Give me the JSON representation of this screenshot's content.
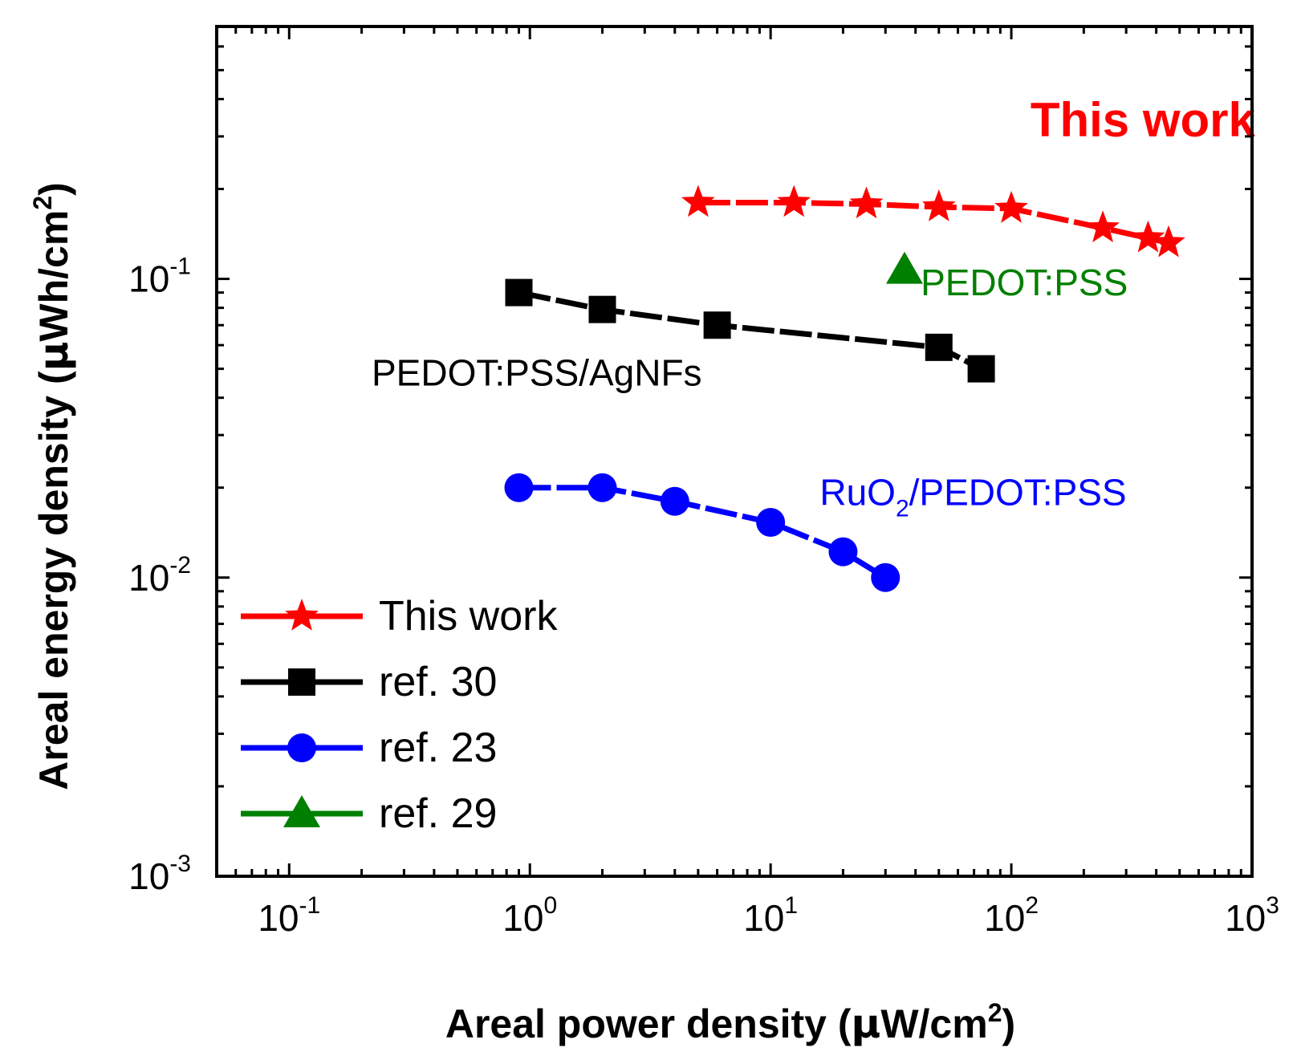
{
  "chart_data": {
    "type": "line",
    "x_scale": "log",
    "y_scale": "log",
    "xlim": [
      0.05,
      1000
    ],
    "ylim": [
      0.001,
      0.7
    ],
    "xlabel": {
      "prefix": "Areal power density (",
      "symbol": "μ",
      "unit": "W/cm",
      "sup": "2",
      "suffix": ")"
    },
    "ylabel": {
      "prefix": "Areal energy density (",
      "symbol": "μ",
      "unit": "Wh/cm",
      "sup": "2",
      "suffix": ")"
    },
    "x_ticks": [
      {
        "value": 0.1,
        "base": "10",
        "exp": "-1"
      },
      {
        "value": 1,
        "base": "10",
        "exp": "0"
      },
      {
        "value": 10,
        "base": "10",
        "exp": "1"
      },
      {
        "value": 100,
        "base": "10",
        "exp": "2"
      },
      {
        "value": 1000,
        "base": "10",
        "exp": "3"
      }
    ],
    "y_ticks": [
      {
        "value": 0.001,
        "base": "10",
        "exp": "-3"
      },
      {
        "value": 0.01,
        "base": "10",
        "exp": "-2"
      },
      {
        "value": 0.1,
        "base": "10",
        "exp": "-1"
      }
    ],
    "series": [
      {
        "name": "This work",
        "color": "#ff0000",
        "marker": "star",
        "x": [
          5,
          12.5,
          25,
          50,
          100,
          240,
          370,
          450
        ],
        "y": [
          0.18,
          0.18,
          0.178,
          0.174,
          0.172,
          0.148,
          0.137,
          0.132
        ]
      },
      {
        "name": "ref. 30",
        "color": "#000000",
        "marker": "square",
        "x": [
          0.9,
          2,
          6,
          50,
          75
        ],
        "y": [
          0.09,
          0.079,
          0.07,
          0.059,
          0.05
        ]
      },
      {
        "name": "ref. 23",
        "color": "#0000ff",
        "marker": "circle",
        "x": [
          0.9,
          2,
          4,
          10,
          20,
          30
        ],
        "y": [
          0.02,
          0.02,
          0.018,
          0.0153,
          0.0122,
          0.01
        ]
      },
      {
        "name": "ref. 29",
        "color": "#008000",
        "marker": "triangle",
        "x": [
          36
        ],
        "y": [
          0.107
        ]
      }
    ],
    "annotations": [
      {
        "text": "This work",
        "color": "#ff0000",
        "bold": true,
        "x": 120,
        "y": 0.3
      },
      {
        "text": "PEDOT:PSS",
        "color": "#008000",
        "bold": false,
        "x": 42,
        "y": 0.088
      },
      {
        "text": "PEDOT:PSS/AgNFs",
        "color": "#000000",
        "bold": false,
        "x": 0.22,
        "y": 0.044
      },
      {
        "text": "RuO",
        "sub": "2",
        "text_after": "/PEDOT:PSS",
        "color": "#0000ff",
        "bold": false,
        "x": 16,
        "y": 0.0175
      }
    ],
    "legend": {
      "position": "bottom-left"
    }
  }
}
